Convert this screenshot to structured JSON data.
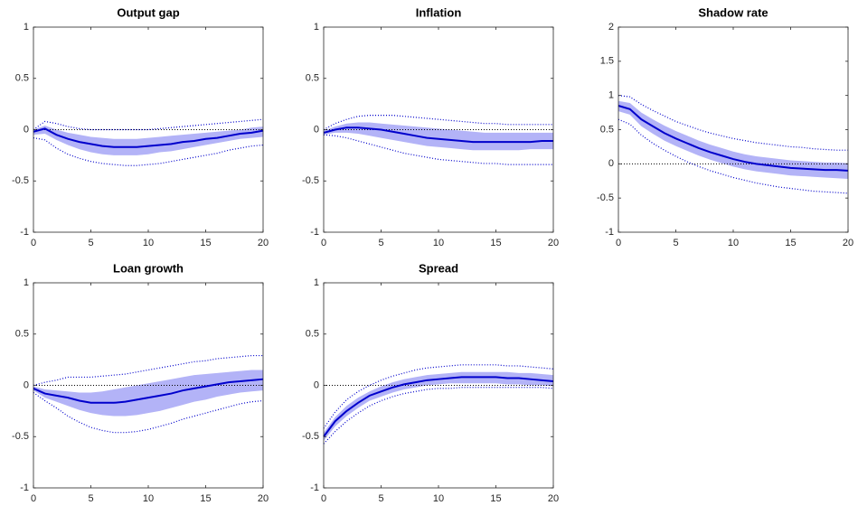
{
  "chart_data": [
    {
      "type": "line",
      "title": "Output gap",
      "x": [
        0,
        1,
        2,
        3,
        4,
        5,
        6,
        7,
        8,
        9,
        10,
        11,
        12,
        13,
        14,
        15,
        16,
        17,
        18,
        19,
        20
      ],
      "xlim": [
        0,
        20
      ],
      "xticks": [
        0,
        5,
        10,
        15,
        20
      ],
      "ylim": [
        -1,
        1
      ],
      "yticks": [
        -1,
        -0.5,
        0,
        0.5,
        1
      ],
      "reference_line": {
        "value": 0,
        "color": "#000000"
      },
      "band": {
        "color": "#b3b3f7",
        "lower": [
          -0.05,
          -0.04,
          -0.1,
          -0.15,
          -0.19,
          -0.22,
          -0.24,
          -0.25,
          -0.25,
          -0.25,
          -0.24,
          -0.22,
          -0.21,
          -0.19,
          -0.17,
          -0.15,
          -0.13,
          -0.11,
          -0.09,
          -0.08,
          -0.07
        ],
        "upper": [
          0,
          0.04,
          0,
          -0.03,
          -0.05,
          -0.07,
          -0.08,
          -0.09,
          -0.09,
          -0.09,
          -0.08,
          -0.07,
          -0.06,
          -0.05,
          -0.04,
          -0.03,
          -0.02,
          -0.01,
          0,
          0.02,
          0.03
        ]
      },
      "bounds": {
        "color": "#0000cc",
        "lower": [
          -0.08,
          -0.1,
          -0.18,
          -0.24,
          -0.28,
          -0.31,
          -0.33,
          -0.34,
          -0.35,
          -0.35,
          -0.34,
          -0.33,
          -0.31,
          -0.29,
          -0.27,
          -0.25,
          -0.23,
          -0.2,
          -0.18,
          -0.16,
          -0.15
        ],
        "upper": [
          0,
          0.08,
          0.06,
          0.03,
          0.01,
          0,
          0,
          0,
          0,
          0,
          0,
          0.01,
          0.02,
          0.03,
          0.04,
          0.05,
          0.06,
          0.07,
          0.08,
          0.09,
          0.1
        ]
      },
      "series": [
        {
          "color": "#0000cc",
          "values": [
            -0.02,
            0.01,
            -0.05,
            -0.09,
            -0.12,
            -0.14,
            -0.16,
            -0.17,
            -0.17,
            -0.17,
            -0.16,
            -0.15,
            -0.14,
            -0.12,
            -0.11,
            -0.09,
            -0.08,
            -0.06,
            -0.04,
            -0.03,
            -0.01
          ]
        }
      ]
    },
    {
      "type": "line",
      "title": "Inflation",
      "x": [
        0,
        1,
        2,
        3,
        4,
        5,
        6,
        7,
        8,
        9,
        10,
        11,
        12,
        13,
        14,
        15,
        16,
        17,
        18,
        19,
        20
      ],
      "xlim": [
        0,
        20
      ],
      "xticks": [
        0,
        5,
        10,
        15,
        20
      ],
      "ylim": [
        -1,
        1
      ],
      "yticks": [
        -1,
        -0.5,
        0,
        0.5,
        1
      ],
      "reference_line": {
        "value": 0,
        "color": "#000000"
      },
      "band": {
        "color": "#b3b3f7",
        "lower": [
          -0.05,
          -0.03,
          -0.03,
          -0.04,
          -0.06,
          -0.08,
          -0.1,
          -0.12,
          -0.14,
          -0.16,
          -0.17,
          -0.18,
          -0.19,
          -0.2,
          -0.2,
          -0.2,
          -0.2,
          -0.2,
          -0.19,
          -0.19,
          -0.19
        ],
        "upper": [
          -0.01,
          0.03,
          0.06,
          0.07,
          0.07,
          0.06,
          0.05,
          0.04,
          0.03,
          0.02,
          0.01,
          0,
          -0.01,
          -0.02,
          -0.03,
          -0.03,
          -0.03,
          -0.03,
          -0.03,
          -0.03,
          -0.03
        ]
      },
      "bounds": {
        "color": "#0000cc",
        "lower": [
          -0.05,
          -0.06,
          -0.08,
          -0.11,
          -0.14,
          -0.17,
          -0.2,
          -0.23,
          -0.25,
          -0.27,
          -0.29,
          -0.3,
          -0.31,
          -0.32,
          -0.33,
          -0.33,
          -0.34,
          -0.34,
          -0.34,
          -0.34,
          -0.34
        ],
        "upper": [
          0,
          0.06,
          0.1,
          0.13,
          0.14,
          0.14,
          0.14,
          0.13,
          0.12,
          0.11,
          0.1,
          0.09,
          0.08,
          0.07,
          0.06,
          0.06,
          0.05,
          0.05,
          0.05,
          0.05,
          0.05
        ]
      },
      "series": [
        {
          "color": "#0000cc",
          "values": [
            -0.03,
            0,
            0.02,
            0.02,
            0.01,
            0,
            -0.02,
            -0.04,
            -0.06,
            -0.08,
            -0.09,
            -0.1,
            -0.11,
            -0.12,
            -0.12,
            -0.12,
            -0.12,
            -0.12,
            -0.12,
            -0.11,
            -0.11
          ]
        }
      ]
    },
    {
      "type": "line",
      "title": "Shadow rate",
      "x": [
        0,
        1,
        2,
        3,
        4,
        5,
        6,
        7,
        8,
        9,
        10,
        11,
        12,
        13,
        14,
        15,
        16,
        17,
        18,
        19,
        20
      ],
      "xlim": [
        0,
        20
      ],
      "xticks": [
        0,
        5,
        10,
        15,
        20
      ],
      "ylim": [
        -1,
        2
      ],
      "yticks": [
        -1,
        -0.5,
        0,
        0.5,
        1,
        1.5,
        2
      ],
      "reference_line": {
        "value": 0,
        "color": "#000000"
      },
      "band": {
        "color": "#b3b3f7",
        "lower": [
          0.77,
          0.72,
          0.55,
          0.44,
          0.34,
          0.26,
          0.19,
          0.12,
          0.06,
          0.01,
          -0.04,
          -0.08,
          -0.11,
          -0.13,
          -0.15,
          -0.17,
          -0.18,
          -0.19,
          -0.2,
          -0.21,
          -0.22
        ],
        "upper": [
          0.92,
          0.89,
          0.75,
          0.65,
          0.56,
          0.48,
          0.41,
          0.34,
          0.28,
          0.23,
          0.18,
          0.14,
          0.11,
          0.09,
          0.07,
          0.05,
          0.04,
          0.03,
          0.02,
          0.02,
          0.01
        ]
      },
      "bounds": {
        "color": "#0000cc",
        "lower": [
          0.65,
          0.58,
          0.42,
          0.3,
          0.2,
          0.11,
          0.03,
          -0.04,
          -0.1,
          -0.15,
          -0.2,
          -0.24,
          -0.28,
          -0.31,
          -0.34,
          -0.36,
          -0.38,
          -0.4,
          -0.41,
          -0.42,
          -0.43
        ],
        "upper": [
          1,
          0.98,
          0.87,
          0.78,
          0.7,
          0.62,
          0.56,
          0.5,
          0.45,
          0.41,
          0.37,
          0.34,
          0.31,
          0.29,
          0.27,
          0.25,
          0.24,
          0.22,
          0.21,
          0.2,
          0.2
        ]
      },
      "series": [
        {
          "color": "#0000cc",
          "values": [
            0.85,
            0.8,
            0.65,
            0.55,
            0.45,
            0.37,
            0.3,
            0.23,
            0.17,
            0.12,
            0.07,
            0.03,
            0,
            -0.02,
            -0.04,
            -0.06,
            -0.07,
            -0.08,
            -0.09,
            -0.09,
            -0.1
          ]
        }
      ]
    },
    {
      "type": "line",
      "title": "Loan growth",
      "x": [
        0,
        1,
        2,
        3,
        4,
        5,
        6,
        7,
        8,
        9,
        10,
        11,
        12,
        13,
        14,
        15,
        16,
        17,
        18,
        19,
        20
      ],
      "xlim": [
        0,
        20
      ],
      "xticks": [
        0,
        5,
        10,
        15,
        20
      ],
      "ylim": [
        -1,
        1
      ],
      "yticks": [
        -1,
        -0.5,
        0,
        0.5,
        1
      ],
      "reference_line": {
        "value": 0,
        "color": "#000000"
      },
      "band": {
        "color": "#b3b3f7",
        "lower": [
          -0.05,
          -0.12,
          -0.16,
          -0.2,
          -0.24,
          -0.27,
          -0.29,
          -0.3,
          -0.3,
          -0.29,
          -0.27,
          -0.25,
          -0.22,
          -0.19,
          -0.16,
          -0.14,
          -0.11,
          -0.09,
          -0.07,
          -0.06,
          -0.05
        ],
        "upper": [
          -0.01,
          -0.04,
          -0.05,
          -0.06,
          -0.07,
          -0.07,
          -0.06,
          -0.04,
          -0.02,
          0,
          0.02,
          0.04,
          0.06,
          0.08,
          0.1,
          0.11,
          0.12,
          0.13,
          0.14,
          0.15,
          0.15
        ]
      },
      "bounds": {
        "color": "#0000cc",
        "lower": [
          -0.07,
          -0.15,
          -0.22,
          -0.3,
          -0.36,
          -0.41,
          -0.44,
          -0.46,
          -0.46,
          -0.45,
          -0.43,
          -0.4,
          -0.37,
          -0.33,
          -0.3,
          -0.27,
          -0.24,
          -0.21,
          -0.18,
          -0.16,
          -0.15
        ],
        "upper": [
          0,
          0.03,
          0.05,
          0.08,
          0.08,
          0.08,
          0.09,
          0.1,
          0.11,
          0.13,
          0.15,
          0.17,
          0.19,
          0.21,
          0.23,
          0.24,
          0.26,
          0.27,
          0.28,
          0.29,
          0.29
        ]
      },
      "series": [
        {
          "color": "#0000cc",
          "values": [
            -0.03,
            -0.08,
            -0.1,
            -0.12,
            -0.15,
            -0.17,
            -0.17,
            -0.17,
            -0.16,
            -0.14,
            -0.12,
            -0.1,
            -0.08,
            -0.05,
            -0.03,
            -0.01,
            0.01,
            0.03,
            0.04,
            0.05,
            0.06
          ]
        }
      ]
    },
    {
      "type": "line",
      "title": "Spread",
      "x": [
        0,
        1,
        2,
        3,
        4,
        5,
        6,
        7,
        8,
        9,
        10,
        11,
        12,
        13,
        14,
        15,
        16,
        17,
        18,
        19,
        20
      ],
      "xlim": [
        0,
        20
      ],
      "xticks": [
        0,
        5,
        10,
        15,
        20
      ],
      "ylim": [
        -1,
        1
      ],
      "yticks": [
        -1,
        -0.5,
        0,
        0.5,
        1
      ],
      "reference_line": {
        "value": 0,
        "color": "#000000"
      },
      "band": {
        "color": "#b3b3f7",
        "lower": [
          -0.54,
          -0.4,
          -0.3,
          -0.22,
          -0.15,
          -0.11,
          -0.07,
          -0.04,
          -0.02,
          0,
          0.01,
          0.02,
          0.02,
          0.02,
          0.02,
          0.02,
          0.01,
          0.01,
          0,
          0,
          -0.01
        ],
        "upper": [
          -0.46,
          -0.31,
          -0.2,
          -0.12,
          -0.06,
          -0.01,
          0.03,
          0.06,
          0.08,
          0.1,
          0.11,
          0.12,
          0.13,
          0.13,
          0.13,
          0.13,
          0.13,
          0.12,
          0.12,
          0.11,
          0.1
        ]
      },
      "bounds": {
        "color": "#0000cc",
        "lower": [
          -0.57,
          -0.45,
          -0.35,
          -0.27,
          -0.2,
          -0.15,
          -0.11,
          -0.08,
          -0.06,
          -0.04,
          -0.03,
          -0.03,
          -0.02,
          -0.02,
          -0.02,
          -0.02,
          -0.02,
          -0.02,
          -0.02,
          -0.02,
          -0.03
        ],
        "upper": [
          -0.42,
          -0.26,
          -0.14,
          -0.06,
          0,
          0.05,
          0.09,
          0.12,
          0.15,
          0.17,
          0.18,
          0.19,
          0.2,
          0.2,
          0.2,
          0.2,
          0.19,
          0.19,
          0.18,
          0.17,
          0.16
        ]
      },
      "series": [
        {
          "color": "#0000cc",
          "values": [
            -0.5,
            -0.35,
            -0.25,
            -0.17,
            -0.1,
            -0.06,
            -0.02,
            0.01,
            0.03,
            0.05,
            0.06,
            0.07,
            0.08,
            0.08,
            0.08,
            0.08,
            0.07,
            0.07,
            0.06,
            0.05,
            0.04
          ]
        }
      ]
    }
  ]
}
